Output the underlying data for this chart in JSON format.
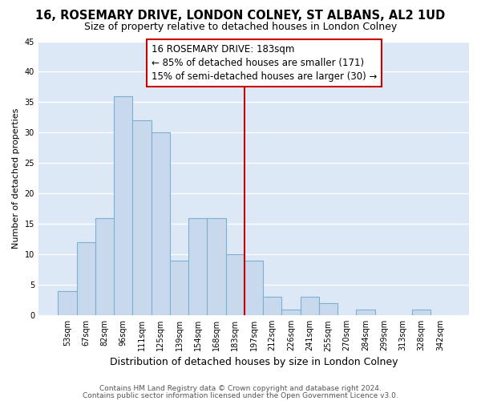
{
  "title": "16, ROSEMARY DRIVE, LONDON COLNEY, ST ALBANS, AL2 1UD",
  "subtitle": "Size of property relative to detached houses in London Colney",
  "xlabel": "Distribution of detached houses by size in London Colney",
  "ylabel": "Number of detached properties",
  "bar_color": "#c9d9ed",
  "bar_edge_color": "#7bafd4",
  "background_color": "#dce8f5",
  "grid_color": "#ffffff",
  "categories": [
    "53sqm",
    "67sqm",
    "82sqm",
    "96sqm",
    "111sqm",
    "125sqm",
    "139sqm",
    "154sqm",
    "168sqm",
    "183sqm",
    "197sqm",
    "212sqm",
    "226sqm",
    "241sqm",
    "255sqm",
    "270sqm",
    "284sqm",
    "299sqm",
    "313sqm",
    "328sqm",
    "342sqm"
  ],
  "values": [
    4,
    12,
    16,
    36,
    32,
    30,
    9,
    16,
    16,
    10,
    9,
    3,
    1,
    3,
    2,
    0,
    1,
    0,
    0,
    1,
    0
  ],
  "ylim": [
    0,
    45
  ],
  "yticks": [
    0,
    5,
    10,
    15,
    20,
    25,
    30,
    35,
    40,
    45
  ],
  "property_index": 9,
  "vline_color": "#cc0000",
  "annotation_title": "16 ROSEMARY DRIVE: 183sqm",
  "annotation_line1": "← 85% of detached houses are smaller (171)",
  "annotation_line2": "15% of semi-detached houses are larger (30) →",
  "annotation_box_color": "#ffffff",
  "annotation_box_edge": "#cc0000",
  "footer1": "Contains HM Land Registry data © Crown copyright and database right 2024.",
  "footer2": "Contains public sector information licensed under the Open Government Licence v3.0.",
  "title_fontsize": 10.5,
  "subtitle_fontsize": 9,
  "xlabel_fontsize": 9,
  "ylabel_fontsize": 8,
  "tick_fontsize": 7,
  "annotation_fontsize": 8.5,
  "footer_fontsize": 6.5,
  "fig_bg": "#ffffff"
}
